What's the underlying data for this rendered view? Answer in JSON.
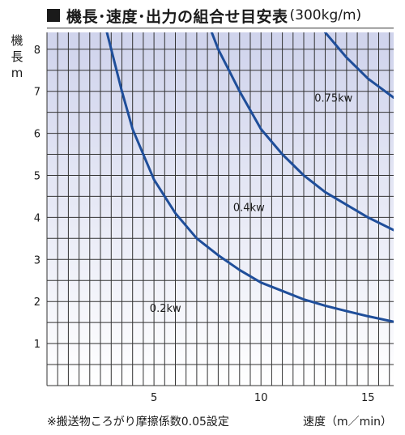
{
  "title": "機長･速度･出力の組合せ目安表",
  "title_unit": "(300kg/m)",
  "ylabel_line1": "機長",
  "ylabel_line2": "m",
  "xlabel": "速度（m／min）",
  "footnote": "※搬送物ころがり摩擦係数0.05設定",
  "chart_data": {
    "type": "line",
    "title": "機長･速度･出力の組合せ目安表(300kg/m)",
    "xlabel": "速度（m／min）",
    "ylabel": "機長 m",
    "xlim": [
      0,
      16.2
    ],
    "ylim": [
      0,
      8.4
    ],
    "xticks": [
      5,
      10,
      15
    ],
    "yticks": [
      1,
      2,
      3,
      4,
      5,
      6,
      7,
      8
    ],
    "grid": true,
    "colors": {
      "line": "#1f4e9a",
      "grid": "#333333",
      "bg_top": "#cfd3ec",
      "bg_bottom": "#ffffff"
    },
    "series": [
      {
        "name": "0.2kw",
        "label_at": [
          4.8,
          1.75
        ],
        "points": [
          [
            2.8,
            8.4
          ],
          [
            3.0,
            8.0
          ],
          [
            3.5,
            7.0
          ],
          [
            4.0,
            6.1
          ],
          [
            5.0,
            4.9
          ],
          [
            6.0,
            4.1
          ],
          [
            7.0,
            3.5
          ],
          [
            8.0,
            3.1
          ],
          [
            9.0,
            2.75
          ],
          [
            10.0,
            2.45
          ],
          [
            11.0,
            2.25
          ],
          [
            12.0,
            2.05
          ],
          [
            13.0,
            1.9
          ],
          [
            14.0,
            1.77
          ],
          [
            15.0,
            1.65
          ],
          [
            16.2,
            1.52
          ]
        ]
      },
      {
        "name": "0.4kw",
        "label_at": [
          8.7,
          4.15
        ],
        "points": [
          [
            7.7,
            8.4
          ],
          [
            8.0,
            8.0
          ],
          [
            8.5,
            7.5
          ],
          [
            9.0,
            7.0
          ],
          [
            10.0,
            6.1
          ],
          [
            11.0,
            5.5
          ],
          [
            12.0,
            5.0
          ],
          [
            13.0,
            4.6
          ],
          [
            14.0,
            4.3
          ],
          [
            15.0,
            4.0
          ],
          [
            16.2,
            3.7
          ]
        ]
      },
      {
        "name": "0.75kw",
        "label_at": [
          12.5,
          6.75
        ],
        "points": [
          [
            13.0,
            8.4
          ],
          [
            14.0,
            7.8
          ],
          [
            15.0,
            7.3
          ],
          [
            16.2,
            6.85
          ]
        ]
      }
    ]
  }
}
